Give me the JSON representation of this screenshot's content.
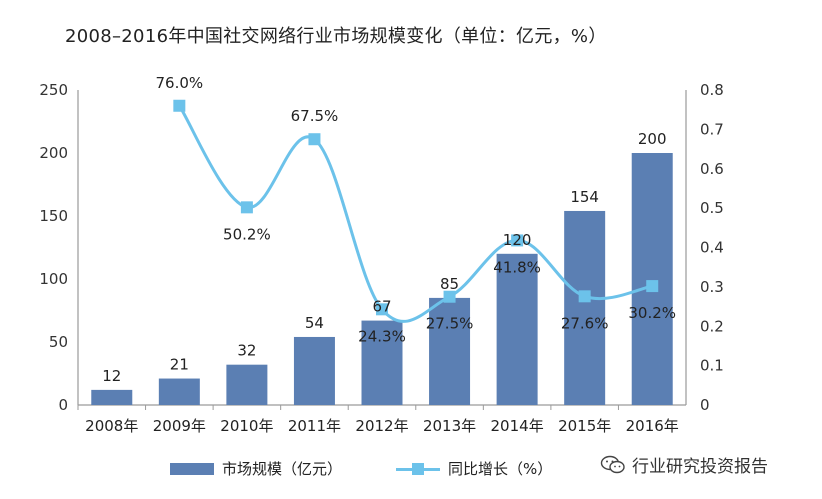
{
  "title": "2008–2016年中国社交网络行业市场规模变化（单位：亿元，%）",
  "chart_data": {
    "type": "bar",
    "categories": [
      "2008年",
      "2009年",
      "2010年",
      "2011年",
      "2012年",
      "2013年",
      "2014年",
      "2015年",
      "2016年"
    ],
    "series": [
      {
        "name": "市场规模（亿元）",
        "type": "bar",
        "axis": "left",
        "values": [
          12,
          21,
          32,
          54,
          67,
          85,
          120,
          154,
          200
        ],
        "labels": [
          "12",
          "21",
          "32",
          "54",
          "67",
          "85",
          "120",
          "154",
          "200"
        ],
        "color": "#5b7fb3"
      },
      {
        "name": "同比增长（%）",
        "type": "line",
        "axis": "right",
        "values": [
          null,
          0.76,
          0.502,
          0.675,
          0.243,
          0.275,
          0.418,
          0.276,
          0.302
        ],
        "labels": [
          "",
          "76.0%",
          "50.2%",
          "67.5%",
          "24.3%",
          "27.5%",
          "41.8%",
          "27.6%",
          "30.2%"
        ],
        "color": "#6cc2ea"
      }
    ],
    "y_left": {
      "ylim": [
        0,
        250
      ],
      "ticks": [
        "0",
        "50",
        "100",
        "150",
        "200",
        "250"
      ]
    },
    "y_right": {
      "ylim": [
        0,
        0.8
      ],
      "ticks": [
        "0",
        "0.1",
        "0.2",
        "0.3",
        "0.4",
        "0.5",
        "0.6",
        "0.7",
        "0.8"
      ]
    },
    "grid": false,
    "legend": "bottom"
  },
  "legend": {
    "bar_label": "市场规模（亿元）",
    "line_label": "同比增长（%）"
  },
  "watermark": {
    "text": "行业研究投资报告",
    "icon": "wechat-icon"
  }
}
